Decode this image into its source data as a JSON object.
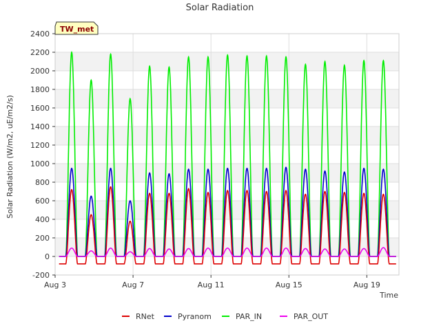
{
  "chart_data": {
    "type": "line",
    "title": "Solar Radiation",
    "xlabel": "Time",
    "ylabel": "Solar Radiation (W/m2, uE/m2/s)",
    "badge": "TW_met",
    "ylim": [
      -200,
      2400
    ],
    "yticks": [
      -200,
      0,
      200,
      400,
      600,
      800,
      1000,
      1200,
      1400,
      1600,
      1800,
      2000,
      2200,
      2400
    ],
    "xlim_days": [
      3.0,
      20.65
    ],
    "xticks": [
      {
        "day": 3,
        "label": "Aug 3"
      },
      {
        "day": 7,
        "label": "Aug 7"
      },
      {
        "day": 11,
        "label": "Aug 11"
      },
      {
        "day": 15,
        "label": "Aug 15"
      },
      {
        "day": 19,
        "label": "Aug 19"
      }
    ],
    "grid": true,
    "legend_position": "bottom",
    "day_peaks": [
      3.85,
      4.85,
      5.85,
      6.85,
      7.85,
      8.85,
      9.85,
      10.85,
      11.85,
      12.85,
      13.85,
      14.85,
      15.85,
      16.85,
      17.85,
      18.85,
      19.85
    ],
    "series": [
      {
        "name": "RNet",
        "color": "#dd0000",
        "night": -80,
        "peaks": [
          720,
          450,
          750,
          380,
          680,
          680,
          730,
          690,
          710,
          710,
          700,
          710,
          670,
          700,
          690,
          680,
          670
        ]
      },
      {
        "name": "Pyranom",
        "color": "#0000cc",
        "night": 0,
        "peaks": [
          950,
          650,
          950,
          600,
          900,
          890,
          940,
          940,
          950,
          950,
          950,
          960,
          940,
          920,
          910,
          950,
          940
        ]
      },
      {
        "name": "PAR_IN",
        "color": "#00ee00",
        "night": 0,
        "peaks": [
          2200,
          1900,
          2180,
          1700,
          2050,
          2040,
          2150,
          2150,
          2170,
          2160,
          2160,
          2150,
          2070,
          2100,
          2060,
          2110,
          2110
        ]
      },
      {
        "name": "PAR_OUT",
        "color": "#ee00ee",
        "night": 0,
        "peaks": [
          90,
          60,
          90,
          50,
          85,
          80,
          85,
          90,
          90,
          90,
          90,
          90,
          85,
          80,
          80,
          85,
          95
        ]
      }
    ]
  }
}
